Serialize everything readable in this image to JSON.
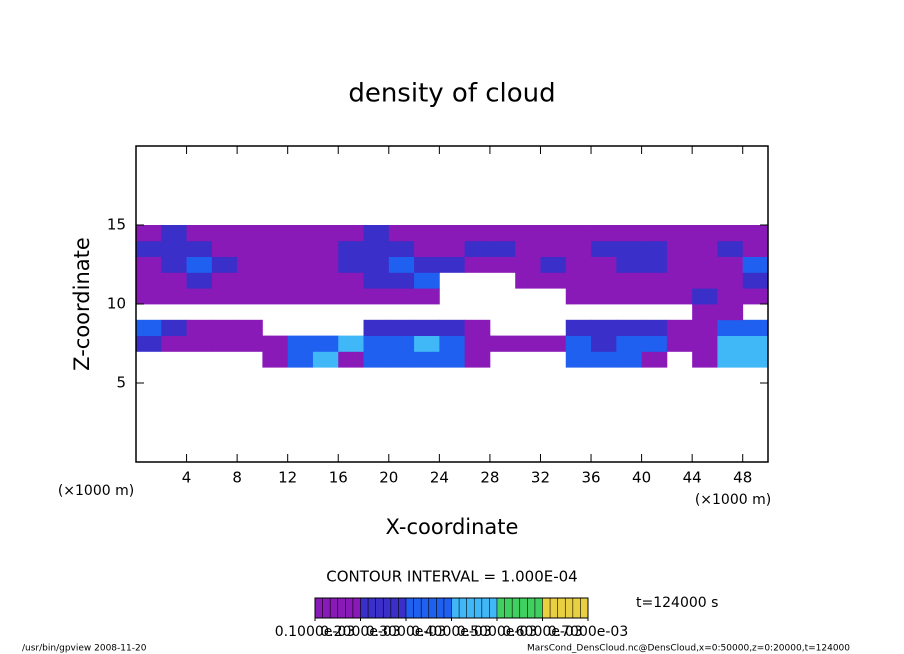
{
  "chart_data": {
    "type": "contour",
    "title": "density of cloud",
    "xlabel": "X-coordinate",
    "ylabel": "Z-coordinate",
    "xunit": "(×1000 m)",
    "yunit": "(×1000 m)",
    "xlim": [
      0,
      50
    ],
    "ylim": [
      0,
      20
    ],
    "xticks": [
      4,
      8,
      12,
      16,
      20,
      24,
      28,
      32,
      36,
      40,
      44,
      48
    ],
    "yticks": [
      5,
      10,
      15
    ],
    "x_edges": [
      0,
      2,
      4,
      6,
      8,
      10,
      12,
      14,
      16,
      18,
      20,
      22,
      24,
      26,
      28,
      30,
      32,
      34,
      36,
      38,
      40,
      42,
      44,
      46,
      48,
      50
    ],
    "z_edges": [
      6,
      7,
      8,
      9,
      10,
      11,
      12,
      13,
      14,
      15
    ],
    "field": [
      [
        null,
        null,
        null,
        null,
        null,
        0.00015,
        0.00035,
        0.00045,
        0.00015,
        0.00035,
        0.00035,
        0.00035,
        0.00035,
        0.00015,
        null,
        null,
        null,
        0.00035,
        0.00035,
        0.00035,
        0.00015,
        null,
        0.00015,
        0.00045,
        0.00045
      ],
      [
        0.00025,
        0.00015,
        0.00015,
        0.00015,
        0.00015,
        0.00015,
        0.00035,
        0.00035,
        0.00045,
        0.00035,
        0.00035,
        0.00045,
        0.00035,
        0.00015,
        0.00015,
        0.00015,
        0.00015,
        0.00035,
        0.00025,
        0.00035,
        0.00035,
        0.00015,
        0.00015,
        0.00045,
        0.00045
      ],
      [
        0.00035,
        0.00025,
        0.00015,
        0.00015,
        0.00015,
        null,
        null,
        null,
        null,
        0.00025,
        0.00025,
        0.00025,
        0.00025,
        0.00015,
        null,
        null,
        null,
        0.00025,
        0.00025,
        0.00025,
        0.00025,
        0.00015,
        0.00015,
        0.00035,
        0.00035
      ],
      [
        null,
        null,
        null,
        null,
        null,
        null,
        null,
        null,
        null,
        null,
        null,
        null,
        null,
        null,
        null,
        null,
        null,
        null,
        null,
        null,
        null,
        null,
        0.00015,
        0.00015,
        null
      ],
      [
        0.00015,
        0.00015,
        0.00015,
        0.00015,
        0.00015,
        0.00015,
        0.00015,
        0.00015,
        0.00015,
        0.00015,
        0.00015,
        0.00015,
        null,
        null,
        null,
        null,
        null,
        0.00015,
        0.00015,
        0.00015,
        0.00015,
        0.00015,
        0.00025,
        0.00015,
        0.00015
      ],
      [
        0.00015,
        0.00015,
        0.00025,
        0.00015,
        0.00015,
        0.00015,
        0.00015,
        0.00015,
        0.00015,
        0.00025,
        0.00025,
        0.00035,
        null,
        null,
        null,
        0.00015,
        0.00015,
        0.00015,
        0.00015,
        0.00015,
        0.00015,
        0.00015,
        0.00015,
        0.00015,
        0.00025
      ],
      [
        0.00015,
        0.00025,
        0.00035,
        0.00025,
        0.00015,
        0.00015,
        0.00015,
        0.00015,
        0.00025,
        0.00025,
        0.00035,
        0.00025,
        0.00025,
        0.00015,
        0.00015,
        0.00015,
        0.00025,
        0.00015,
        0.00015,
        0.00025,
        0.00025,
        0.00015,
        0.00015,
        0.00015,
        0.00035
      ],
      [
        0.00025,
        0.00025,
        0.00025,
        0.00015,
        0.00015,
        0.00015,
        0.00015,
        0.00015,
        0.00025,
        0.00025,
        0.00025,
        0.00015,
        0.00015,
        0.00025,
        0.00025,
        0.00015,
        0.00015,
        0.00015,
        0.00025,
        0.00025,
        0.00025,
        0.00015,
        0.00015,
        0.00025,
        0.00015
      ],
      [
        0.00015,
        0.00025,
        0.00015,
        0.00015,
        0.00015,
        0.00015,
        0.00015,
        0.00015,
        0.00015,
        0.00025,
        0.00015,
        0.00015,
        0.00015,
        0.00015,
        0.00015,
        0.00015,
        0.00015,
        0.00015,
        0.00015,
        0.00015,
        0.00015,
        0.00015,
        0.00015,
        0.00015,
        0.00015
      ]
    ],
    "levels": [
      {
        "value": 0.0001,
        "label": "0.1000e-03"
      },
      {
        "value": 0.0002,
        "label": "0.2000e-03"
      },
      {
        "value": 0.0003,
        "label": "0.3000e-03"
      },
      {
        "value": 0.0004,
        "label": "0.4000e-03"
      },
      {
        "value": 0.0005,
        "label": "0.5000e-03"
      },
      {
        "value": 0.0006,
        "label": "0.6000e-03"
      },
      {
        "value": 0.0007,
        "label": "0.7000e-03"
      }
    ],
    "colors": [
      "#8a1ab8",
      "#3a2fc8",
      "#2060f0",
      "#40b8f8",
      "#40d060",
      "#e8d040"
    ],
    "contour_interval": "CONTOUR INTERVAL = 1.000E-04",
    "time_label": "t=124000 s",
    "footer_left": "/usr/bin/gpview  2008-11-20",
    "footer_right": "MarsCond_DensCloud.nc@DensCloud,x=0:50000,z=0:20000,t=124000"
  }
}
